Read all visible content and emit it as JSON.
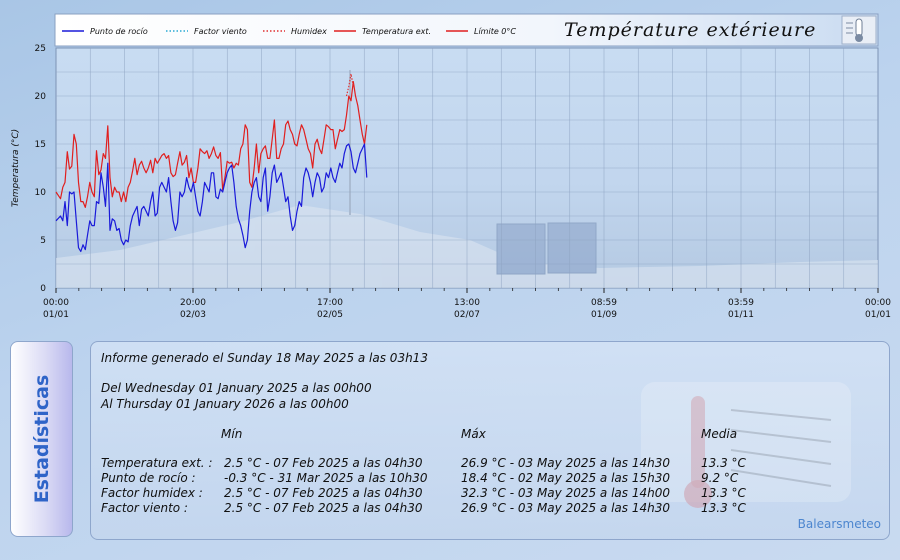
{
  "chart_data": {
    "type": "line",
    "title": "Température extérieure",
    "ylabel": "Temperatura (°C)",
    "ylim": [
      0,
      25
    ],
    "yticks": [
      "0",
      "5",
      "10",
      "15",
      "20",
      "25"
    ],
    "xticks": [
      {
        "time": "00:00",
        "date": "01/01"
      },
      {
        "time": "20:00",
        "date": "02/03"
      },
      {
        "time": "17:00",
        "date": "02/05"
      },
      {
        "time": "13:00",
        "date": "02/07"
      },
      {
        "time": "08:59",
        "date": "01/09"
      },
      {
        "time": "03:59",
        "date": "01/11"
      },
      {
        "time": "00:00",
        "date": "01/01"
      }
    ],
    "grid": true,
    "legend": [
      {
        "name": "Punto de rocío",
        "color": "#1a1ad9",
        "style": "solid"
      },
      {
        "name": "Factor viento",
        "color": "#2aaad4",
        "style": "dotted"
      },
      {
        "name": "Humidex",
        "color": "#e03030",
        "style": "dotted"
      },
      {
        "name": "Temperatura ext.",
        "color": "#e01f1f",
        "style": "solid"
      },
      {
        "name": "Límite 0°C",
        "color": "#e01f1f",
        "style": "solid"
      }
    ],
    "x_day_range": [
      0,
      365
    ],
    "series": [
      {
        "name": "Temperatura ext.",
        "color": "#e01f1f",
        "x": [
          0,
          2,
          3,
          4,
          5,
          6,
          7,
          8,
          9,
          10,
          11,
          12,
          13,
          14,
          15,
          16,
          17,
          18,
          19,
          20,
          21,
          22,
          23,
          24,
          25,
          26,
          27,
          28,
          29,
          30,
          31,
          32,
          33,
          34,
          35,
          36,
          37,
          38,
          39,
          40,
          41,
          42,
          43,
          44,
          45,
          46,
          47,
          48,
          49,
          50,
          51,
          52,
          53,
          54,
          55,
          56,
          57,
          58,
          59,
          60,
          61,
          62,
          63,
          64,
          65,
          66,
          67,
          68,
          69,
          70,
          71,
          72,
          73,
          74,
          75,
          76,
          77,
          78,
          79,
          80,
          81,
          82,
          83,
          84,
          85,
          86,
          87,
          88,
          89,
          90,
          91,
          92,
          93,
          94,
          95,
          96,
          97,
          98,
          99,
          100,
          101,
          102,
          103,
          104,
          105,
          106,
          107,
          108,
          109,
          110,
          111,
          112,
          113,
          114,
          115,
          116,
          117,
          118,
          119,
          120,
          121,
          122,
          123,
          124,
          125,
          126,
          127,
          128,
          129,
          130,
          131,
          132,
          133,
          134,
          135,
          136,
          137,
          138
        ],
        "y": [
          10.0,
          9.3,
          10.5,
          11.0,
          14.2,
          12.4,
          12.7,
          16.0,
          15.0,
          11.0,
          9.0,
          9.0,
          8.4,
          9.5,
          11.0,
          10.0,
          9.5,
          14.3,
          11.8,
          12.3,
          14.0,
          13.5,
          16.9,
          11.5,
          9.5,
          10.5,
          10.0,
          10.0,
          9.0,
          10.0,
          9.0,
          10.5,
          11.0,
          12.2,
          13.5,
          11.8,
          12.8,
          13.2,
          12.5,
          12.0,
          12.5,
          13.3,
          12.0,
          13.5,
          13.0,
          13.4,
          13.8,
          14.0,
          13.5,
          13.8,
          12.0,
          11.6,
          11.8,
          13.0,
          14.2,
          12.8,
          13.1,
          13.8,
          11.5,
          12.5,
          11.0,
          11.0,
          12.5,
          14.5,
          14.2,
          14.0,
          14.3,
          13.5,
          14.0,
          14.7,
          13.8,
          13.5,
          14.1,
          10.2,
          11.5,
          13.2,
          13.0,
          13.1,
          12.5,
          13.0,
          12.8,
          14.5,
          15.0,
          17.0,
          16.5,
          11.0,
          10.5,
          12.5,
          15.0,
          12.0,
          14.0,
          14.5,
          14.8,
          13.5,
          13.5,
          15.5,
          17.5,
          13.5,
          13.5,
          14.5,
          15.0,
          17.0,
          17.4,
          16.5,
          16.0,
          15.0,
          14.8,
          16.0,
          17.0,
          16.5,
          15.5,
          14.5,
          14.0,
          12.5,
          15.0,
          15.5,
          14.5,
          14.0,
          15.5,
          17.0,
          16.8,
          16.5,
          16.5,
          14.5,
          15.5,
          16.5,
          16.3,
          16.5,
          18.0,
          20.0,
          19.5,
          21.5,
          20.0,
          19.0,
          17.5,
          16.0,
          15.0,
          17.0
        ]
      },
      {
        "name": "Humidex",
        "color": "#e03030",
        "x": [
          129,
          130,
          131,
          132
        ],
        "y": [
          20.0,
          21.0,
          22.3,
          21.0
        ]
      },
      {
        "name": "Punto de rocío",
        "color": "#1a1ad9",
        "x": [
          0,
          2,
          3,
          4,
          5,
          6,
          7,
          8,
          9,
          10,
          11,
          12,
          13,
          14,
          15,
          16,
          17,
          18,
          19,
          20,
          21,
          22,
          23,
          24,
          25,
          26,
          27,
          28,
          29,
          30,
          31,
          32,
          33,
          34,
          35,
          36,
          37,
          38,
          39,
          40,
          41,
          42,
          43,
          44,
          45,
          46,
          47,
          48,
          49,
          50,
          51,
          52,
          53,
          54,
          55,
          56,
          57,
          58,
          59,
          60,
          61,
          62,
          63,
          64,
          65,
          66,
          67,
          68,
          69,
          70,
          71,
          72,
          73,
          74,
          75,
          76,
          77,
          78,
          79,
          80,
          81,
          82,
          83,
          84,
          85,
          86,
          87,
          88,
          89,
          90,
          91,
          92,
          93,
          94,
          95,
          96,
          97,
          98,
          99,
          100,
          101,
          102,
          103,
          104,
          105,
          106,
          107,
          108,
          109,
          110,
          111,
          112,
          113,
          114,
          115,
          116,
          117,
          118,
          119,
          120,
          121,
          122,
          123,
          124,
          125,
          126,
          127,
          128,
          129,
          130,
          131,
          132,
          133,
          134,
          135,
          136,
          137,
          138
        ],
        "y": [
          7.0,
          7.5,
          7.0,
          9.0,
          6.5,
          10.0,
          9.8,
          10.0,
          7.0,
          4.2,
          3.8,
          4.5,
          4.0,
          5.5,
          7.0,
          6.5,
          6.5,
          9.0,
          8.8,
          12.0,
          10.5,
          8.5,
          13.0,
          6.0,
          7.2,
          7.0,
          6.0,
          6.2,
          5.0,
          4.5,
          5.0,
          4.8,
          6.5,
          7.5,
          8.0,
          8.5,
          6.5,
          8.2,
          8.5,
          8.0,
          7.5,
          9.0,
          10.0,
          7.5,
          7.8,
          10.5,
          11.0,
          10.5,
          10.0,
          11.5,
          9.0,
          7.0,
          6.0,
          6.8,
          10.0,
          9.5,
          10.0,
          11.5,
          10.5,
          10.0,
          11.0,
          9.5,
          8.0,
          7.5,
          9.0,
          11.0,
          10.5,
          10.0,
          12.0,
          12.0,
          9.5,
          9.3,
          10.3,
          10.0,
          11.0,
          12.0,
          12.5,
          12.8,
          11.0,
          8.5,
          7.2,
          6.5,
          5.5,
          4.2,
          5.0,
          8.0,
          10.0,
          11.0,
          11.5,
          9.5,
          9.0,
          11.5,
          12.5,
          8.0,
          9.5,
          12.0,
          12.8,
          11.0,
          11.5,
          12.0,
          10.5,
          9.0,
          9.5,
          7.5,
          6.0,
          6.5,
          8.0,
          9.0,
          8.5,
          11.5,
          12.5,
          12.0,
          11.0,
          9.5,
          11.0,
          12.0,
          11.5,
          10.0,
          10.5,
          12.0,
          11.5,
          12.5,
          11.5,
          11.0,
          12.0,
          13.0,
          12.5,
          14.0,
          14.8,
          15.0,
          14.2,
          12.5,
          12.0,
          13.0,
          14.0,
          14.5,
          15.0,
          11.5
        ]
      }
    ]
  },
  "side_title": "Estadísticas",
  "stats": {
    "report_line": "Informe generado el Sunday 18 May 2025 a las 03h13",
    "from_line": "Del Wednesday 01 January 2025 a las 00h00",
    "to_line": "Al Thursday 01 January 2026 a las 00h00",
    "headers": {
      "min": "Mín",
      "max": "Máx",
      "avg": "Media"
    },
    "rows": [
      {
        "label": "Temperatura ext. :",
        "min": "2.5 °C - 07 Feb 2025 a las 04h30",
        "max": "26.9 °C - 03 May 2025 a las 14h30",
        "avg": "13.3 °C"
      },
      {
        "label": "Punto de rocío :",
        "min": "-0.3 °C - 31 Mar 2025 a las 10h30",
        "max": "18.4 °C - 02 May 2025 a las 15h30",
        "avg": "9.2 °C"
      },
      {
        "label": "Factor humidex :",
        "min": "2.5 °C - 07 Feb 2025 a las 04h30",
        "max": "32.3 °C - 03 May 2025 a las 14h00",
        "avg": "13.3 °C"
      },
      {
        "label": "Factor viento :",
        "min": "2.5 °C - 07 Feb 2025 a las 04h30",
        "max": "26.9 °C - 03 May 2025 a las 14h30",
        "avg": "13.3 °C"
      }
    ],
    "brand": "Balearsmeteo"
  }
}
